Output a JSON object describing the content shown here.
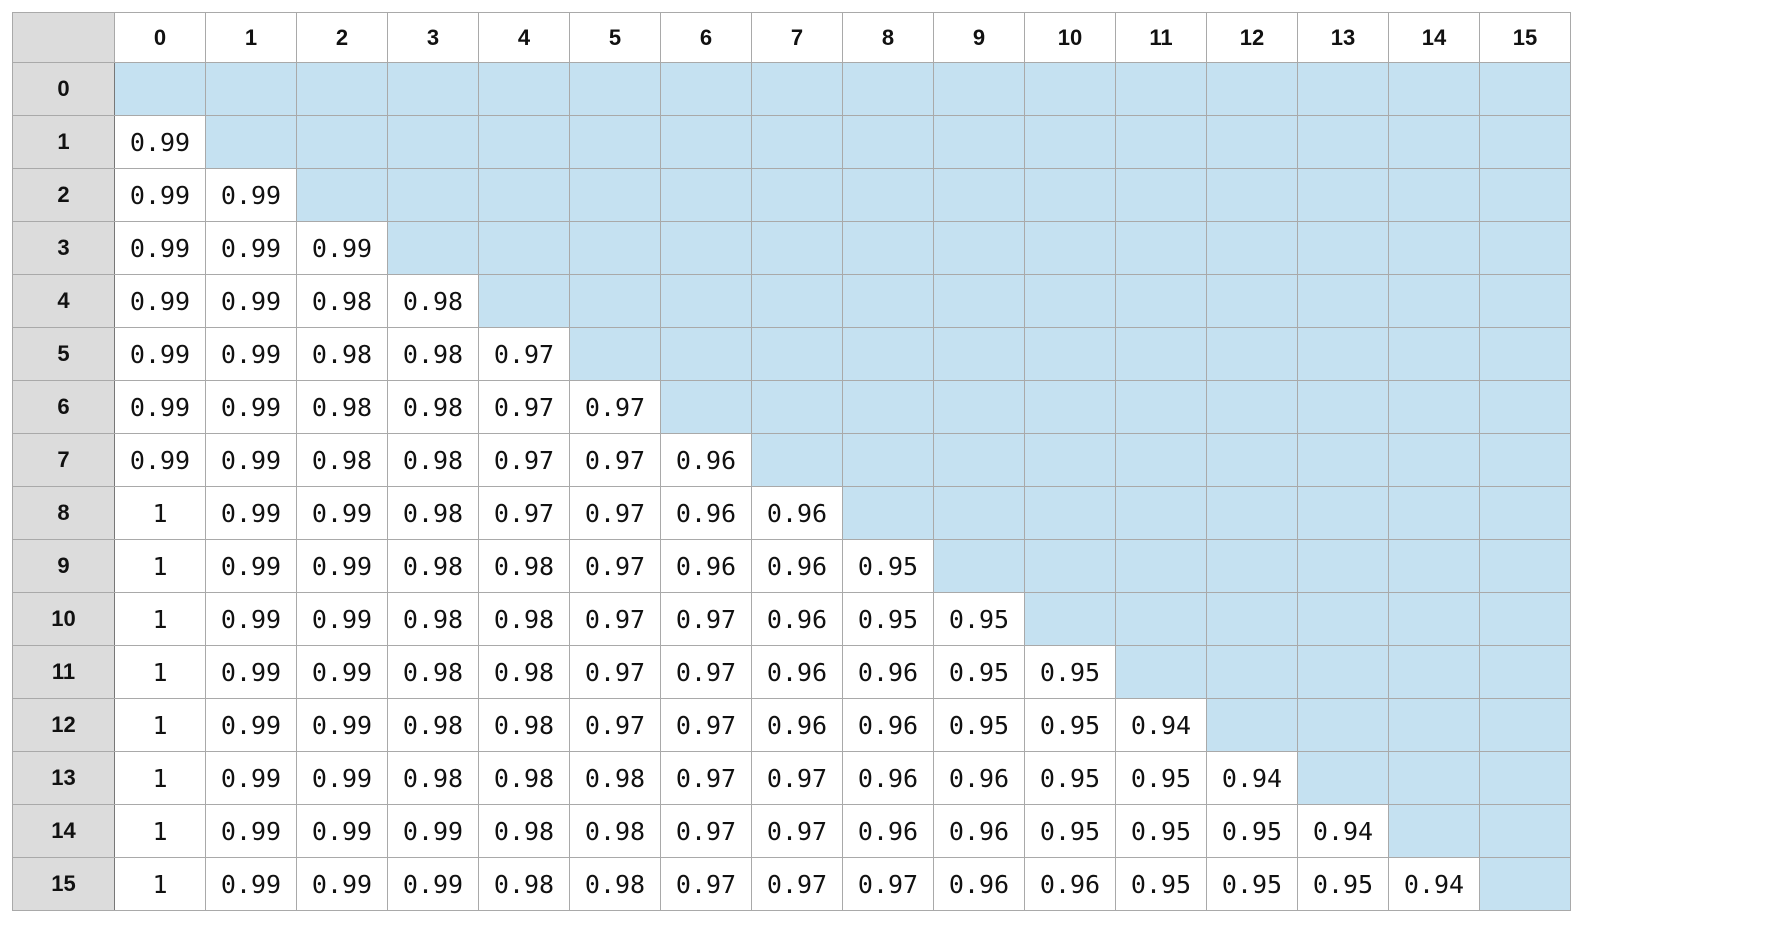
{
  "chart_data": {
    "type": "table",
    "title": "",
    "column_labels": [
      "0",
      "1",
      "2",
      "3",
      "4",
      "5",
      "6",
      "7",
      "8",
      "9",
      "10",
      "11",
      "12",
      "13",
      "14",
      "15"
    ],
    "row_labels": [
      "0",
      "1",
      "2",
      "3",
      "4",
      "5",
      "6",
      "7",
      "8",
      "9",
      "10",
      "11",
      "12",
      "13",
      "14",
      "15"
    ],
    "values": [
      [],
      [
        "0.99"
      ],
      [
        "0.99",
        "0.99"
      ],
      [
        "0.99",
        "0.99",
        "0.99"
      ],
      [
        "0.99",
        "0.99",
        "0.98",
        "0.98"
      ],
      [
        "0.99",
        "0.99",
        "0.98",
        "0.98",
        "0.97"
      ],
      [
        "0.99",
        "0.99",
        "0.98",
        "0.98",
        "0.97",
        "0.97"
      ],
      [
        "0.99",
        "0.99",
        "0.98",
        "0.98",
        "0.97",
        "0.97",
        "0.96"
      ],
      [
        "1",
        "0.99",
        "0.99",
        "0.98",
        "0.97",
        "0.97",
        "0.96",
        "0.96"
      ],
      [
        "1",
        "0.99",
        "0.99",
        "0.98",
        "0.98",
        "0.97",
        "0.96",
        "0.96",
        "0.95"
      ],
      [
        "1",
        "0.99",
        "0.99",
        "0.98",
        "0.98",
        "0.97",
        "0.97",
        "0.96",
        "0.95",
        "0.95"
      ],
      [
        "1",
        "0.99",
        "0.99",
        "0.98",
        "0.98",
        "0.97",
        "0.97",
        "0.96",
        "0.96",
        "0.95",
        "0.95"
      ],
      [
        "1",
        "0.99",
        "0.99",
        "0.98",
        "0.98",
        "0.97",
        "0.97",
        "0.96",
        "0.96",
        "0.95",
        "0.95",
        "0.94"
      ],
      [
        "1",
        "0.99",
        "0.99",
        "0.98",
        "0.98",
        "0.98",
        "0.97",
        "0.97",
        "0.96",
        "0.96",
        "0.95",
        "0.95",
        "0.94"
      ],
      [
        "1",
        "0.99",
        "0.99",
        "0.99",
        "0.98",
        "0.98",
        "0.97",
        "0.97",
        "0.96",
        "0.96",
        "0.95",
        "0.95",
        "0.95",
        "0.94"
      ],
      [
        "1",
        "0.99",
        "0.99",
        "0.99",
        "0.98",
        "0.98",
        "0.97",
        "0.97",
        "0.97",
        "0.96",
        "0.96",
        "0.95",
        "0.95",
        "0.95",
        "0.94"
      ]
    ],
    "empty_cell_color": "#c5e1f1",
    "header_color": "#dcdcdc",
    "grid": true
  }
}
